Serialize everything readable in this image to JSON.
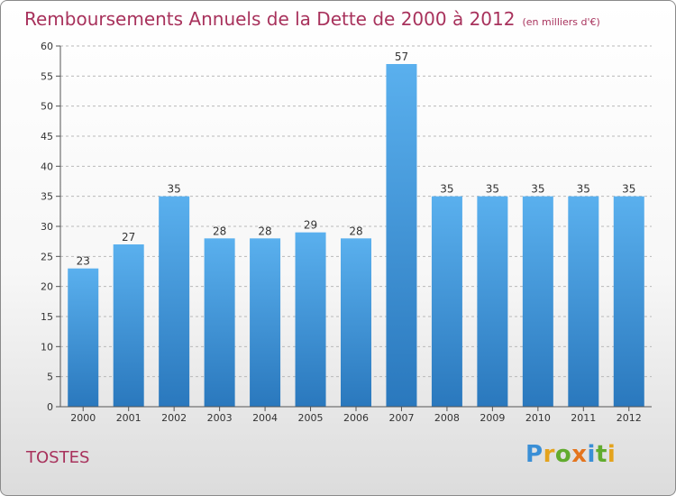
{
  "chart_data": {
    "type": "bar",
    "title": "Remboursements Annuels de la Dette de 2000 à 2012",
    "subtitle": "(en milliers d'€)",
    "categories": [
      "2000",
      "2001",
      "2002",
      "2003",
      "2004",
      "2005",
      "2006",
      "2007",
      "2008",
      "2009",
      "2010",
      "2011",
      "2012"
    ],
    "values": [
      23,
      27,
      35,
      28,
      28,
      29,
      28,
      57,
      35,
      35,
      35,
      35,
      35
    ],
    "ylim": [
      0,
      60
    ],
    "yticks": [
      0,
      5,
      10,
      15,
      20,
      25,
      30,
      35,
      40,
      45,
      50,
      55,
      60
    ],
    "xlabel": "",
    "ylabel": "",
    "bar_color": "#3d8fd1"
  },
  "footer": {
    "commune": "TOSTES",
    "logo_letters": [
      "P",
      "r",
      "o",
      "x",
      "i",
      "t",
      "i"
    ]
  }
}
